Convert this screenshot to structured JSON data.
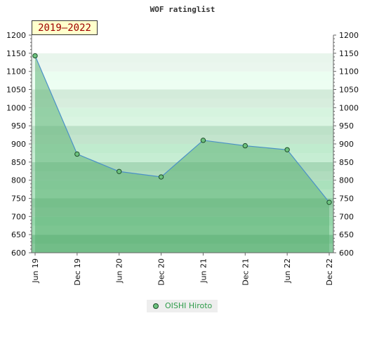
{
  "chart_data": {
    "type": "area",
    "title": "WOF ratinglist",
    "period_label": "2019–2022",
    "categories": [
      "Jun 19",
      "Dec 19",
      "Jun 20",
      "Dec 20",
      "Jun 21",
      "Dec 21",
      "Jun 22",
      "Dec 22"
    ],
    "series": [
      {
        "name": "OISHI Hiroto",
        "values": [
          1143,
          872,
          824,
          809,
          910,
          895,
          884,
          739
        ]
      }
    ],
    "ylim": [
      600,
      1200
    ],
    "y_ticks": [
      600,
      650,
      700,
      750,
      800,
      850,
      900,
      950,
      1000,
      1050,
      1100,
      1150,
      1200
    ],
    "grid": true,
    "axes": "left and right",
    "legend_placement": "bottom",
    "colors": {
      "line": "#4a90c8",
      "marker_fill": "#6cc27e",
      "marker_stroke": "#1f4d2a",
      "area_fill": "#5fb276",
      "band_dark": "#8fd3a4",
      "band_light": "#eef8f1",
      "legend_text": "#2e9c4a"
    }
  }
}
